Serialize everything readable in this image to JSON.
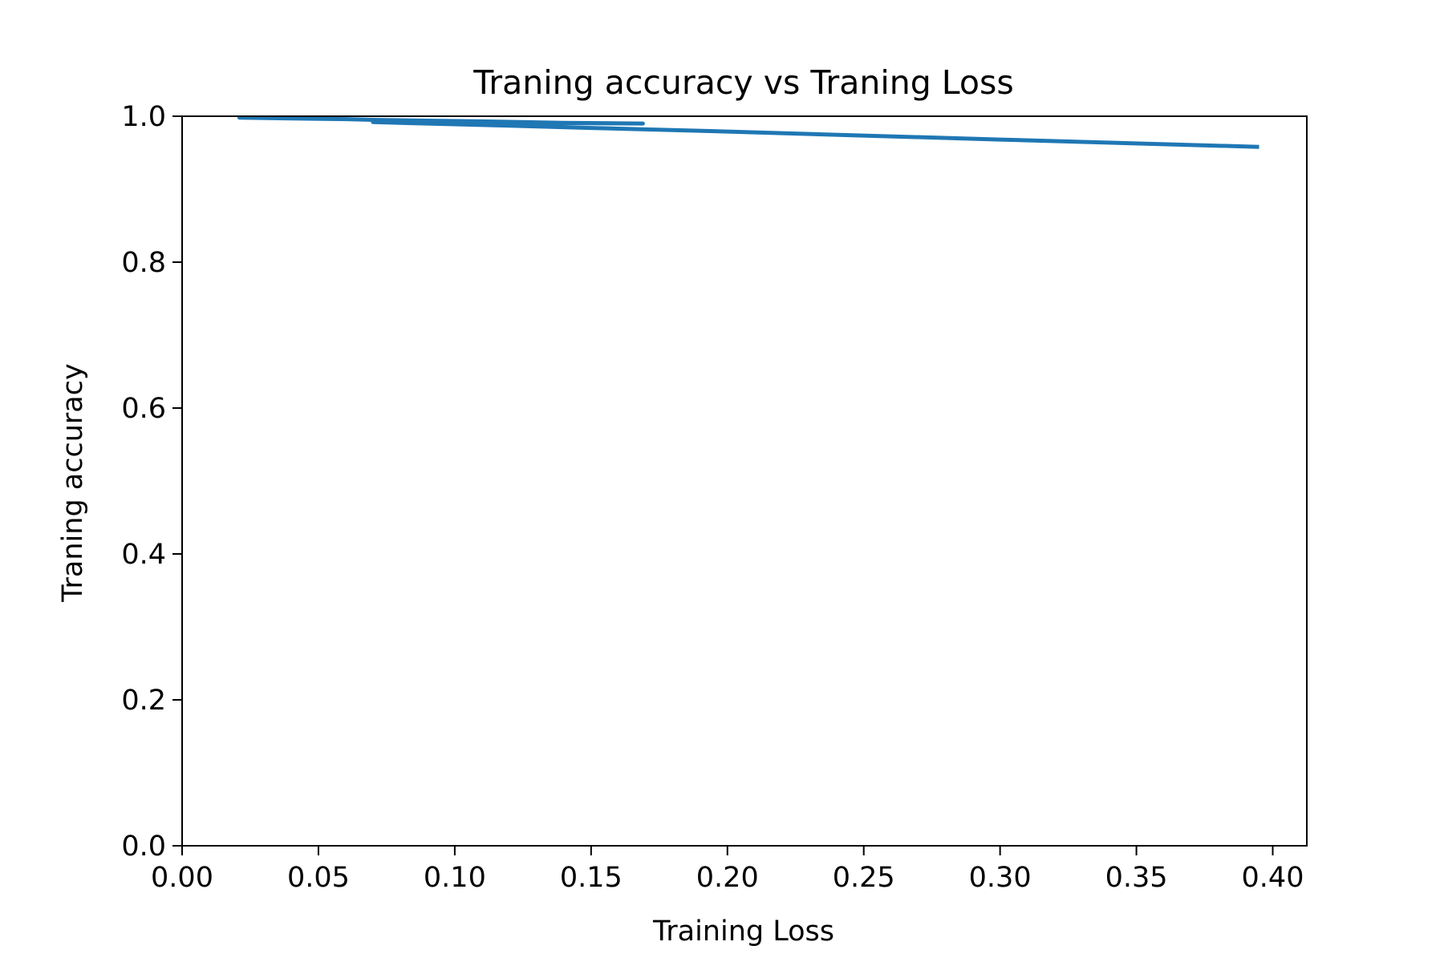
{
  "chart_data": {
    "type": "line",
    "title": "Traning accuracy vs Traning Loss",
    "xlabel": "Training Loss",
    "ylabel": "Traning accuracy",
    "xlim": [
      0.0,
      0.4125
    ],
    "ylim": [
      0.0,
      1.0
    ],
    "xticks": [
      "0.00",
      "0.05",
      "0.10",
      "0.15",
      "0.20",
      "0.25",
      "0.30",
      "0.35",
      "0.40"
    ],
    "yticks": [
      "0.0",
      "0.2",
      "0.4",
      "0.6",
      "0.8",
      "1.0"
    ],
    "grid": false,
    "color": "#1f77b4",
    "series": [
      {
        "x": [
          0.395,
          0.3,
          0.2,
          0.17,
          0.15,
          0.12,
          0.1,
          0.08,
          0.07,
          0.169,
          0.14,
          0.11,
          0.09,
          0.07,
          0.06,
          0.04,
          0.021,
          0.021
        ],
        "values": [
          0.958,
          0.968,
          0.979,
          0.982,
          0.984,
          0.987,
          0.989,
          0.991,
          0.992,
          0.99,
          0.991,
          0.993,
          0.994,
          0.995,
          0.996,
          0.997,
          0.998,
          0.999
        ]
      }
    ]
  }
}
